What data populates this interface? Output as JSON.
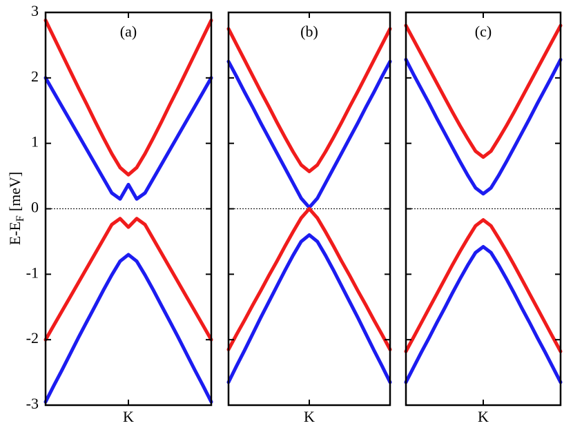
{
  "chart_data": [
    {
      "type": "line",
      "title": "(a)",
      "ylabel": {
        "main": "E-E",
        "sub": "F",
        "unit": "[meV]"
      },
      "x": [
        -1,
        -0.9,
        -0.8,
        -0.7,
        -0.6,
        -0.5,
        -0.4,
        -0.3,
        -0.2,
        -0.1,
        0,
        0.1,
        0.2,
        0.3,
        0.4,
        0.5,
        0.6,
        0.7,
        0.8,
        0.9,
        1
      ],
      "xlim": [
        -1,
        1
      ],
      "xticks": [
        {
          "value": 0,
          "label": "K"
        }
      ],
      "ylim": [
        -3,
        3
      ],
      "yticks": [
        -3,
        -2,
        -1,
        0,
        1,
        2,
        3
      ],
      "ytick_labels": true,
      "hline": 0,
      "series": [
        {
          "color": "#f01c1c",
          "values": [
            2.88,
            2.62,
            2.36,
            2.1,
            1.84,
            1.59,
            1.33,
            1.08,
            0.84,
            0.63,
            0.52,
            0.63,
            0.84,
            1.08,
            1.33,
            1.59,
            1.84,
            2.1,
            2.36,
            2.62,
            2.88
          ]
        },
        {
          "color": "#1c1cf0",
          "values": [
            2.0,
            1.78,
            1.56,
            1.34,
            1.12,
            0.9,
            0.68,
            0.46,
            0.24,
            0.15,
            0.37,
            0.15,
            0.24,
            0.46,
            0.68,
            0.9,
            1.12,
            1.34,
            1.56,
            1.78,
            2.0
          ]
        },
        {
          "color": "#f01c1c",
          "values": [
            -2.0,
            -1.78,
            -1.56,
            -1.34,
            -1.12,
            -0.9,
            -0.68,
            -0.46,
            -0.24,
            -0.15,
            -0.28,
            -0.15,
            -0.24,
            -0.46,
            -0.68,
            -0.9,
            -1.12,
            -1.34,
            -1.56,
            -1.78,
            -2.0
          ]
        },
        {
          "color": "#1c1cf0",
          "values": [
            -2.95,
            -2.7,
            -2.46,
            -2.21,
            -1.96,
            -1.72,
            -1.48,
            -1.24,
            -1.01,
            -0.8,
            -0.7,
            -0.8,
            -1.01,
            -1.24,
            -1.48,
            -1.72,
            -1.96,
            -2.21,
            -2.46,
            -2.7,
            -2.95
          ]
        }
      ]
    },
    {
      "type": "line",
      "title": "(b)",
      "x": [
        -1,
        -0.9,
        -0.8,
        -0.7,
        -0.6,
        -0.5,
        -0.4,
        -0.3,
        -0.2,
        -0.1,
        0,
        0.1,
        0.2,
        0.3,
        0.4,
        0.5,
        0.6,
        0.7,
        0.8,
        0.9,
        1
      ],
      "xlim": [
        -1,
        1
      ],
      "xticks": [
        {
          "value": 0,
          "label": "K"
        }
      ],
      "ylim": [
        -3,
        3
      ],
      "yticks": [
        -3,
        -2,
        -1,
        0,
        1,
        2,
        3
      ],
      "ytick_labels": false,
      "hline": 0,
      "series": [
        {
          "color": "#f01c1c",
          "values": [
            2.75,
            2.51,
            2.27,
            2.03,
            1.79,
            1.56,
            1.32,
            1.09,
            0.87,
            0.67,
            0.57,
            0.67,
            0.87,
            1.09,
            1.32,
            1.56,
            1.79,
            2.03,
            2.27,
            2.51,
            2.75
          ]
        },
        {
          "color": "#1c1cf0",
          "values": [
            2.25,
            2.02,
            1.78,
            1.55,
            1.31,
            1.08,
            0.85,
            0.62,
            0.39,
            0.16,
            0.02,
            0.16,
            0.39,
            0.62,
            0.85,
            1.08,
            1.31,
            1.55,
            1.78,
            2.02,
            2.25
          ]
        },
        {
          "color": "#f01c1c",
          "values": [
            -2.15,
            -1.92,
            -1.7,
            -1.47,
            -1.25,
            -1.02,
            -0.8,
            -0.57,
            -0.35,
            -0.14,
            0,
            -0.14,
            -0.35,
            -0.57,
            -0.8,
            -1.02,
            -1.25,
            -1.47,
            -1.7,
            -1.92,
            -2.15
          ]
        },
        {
          "color": "#1c1cf0",
          "values": [
            -2.65,
            -2.4,
            -2.16,
            -1.91,
            -1.66,
            -1.42,
            -1.18,
            -0.94,
            -0.71,
            -0.5,
            -0.4,
            -0.5,
            -0.71,
            -0.94,
            -1.18,
            -1.42,
            -1.66,
            -1.91,
            -2.16,
            -2.4,
            -2.65
          ]
        }
      ]
    },
    {
      "type": "line",
      "title": "(c)",
      "x": [
        -1,
        -0.9,
        -0.8,
        -0.7,
        -0.6,
        -0.5,
        -0.4,
        -0.3,
        -0.2,
        -0.1,
        0,
        0.1,
        0.2,
        0.3,
        0.4,
        0.5,
        0.6,
        0.7,
        0.8,
        0.9,
        1
      ],
      "xlim": [
        -1,
        1
      ],
      "xticks": [
        {
          "value": 0,
          "label": "K"
        }
      ],
      "ylim": [
        -3,
        3
      ],
      "yticks": [
        -3,
        -2,
        -1,
        0,
        1,
        2,
        3
      ],
      "ytick_labels": false,
      "hline": 0,
      "series": [
        {
          "color": "#f01c1c",
          "values": [
            2.8,
            2.58,
            2.36,
            2.14,
            1.92,
            1.7,
            1.48,
            1.27,
            1.07,
            0.88,
            0.79,
            0.88,
            1.07,
            1.27,
            1.48,
            1.7,
            1.92,
            2.14,
            2.36,
            2.58,
            2.8
          ]
        },
        {
          "color": "#1c1cf0",
          "values": [
            2.28,
            2.05,
            1.83,
            1.61,
            1.38,
            1.16,
            0.94,
            0.72,
            0.51,
            0.32,
            0.23,
            0.32,
            0.51,
            0.72,
            0.94,
            1.16,
            1.38,
            1.61,
            1.83,
            2.05,
            2.28
          ]
        },
        {
          "color": "#f01c1c",
          "values": [
            -2.18,
            -1.96,
            -1.74,
            -1.52,
            -1.3,
            -1.08,
            -0.86,
            -0.65,
            -0.45,
            -0.26,
            -0.17,
            -0.26,
            -0.45,
            -0.65,
            -0.86,
            -1.08,
            -1.3,
            -1.52,
            -1.74,
            -1.96,
            -2.18
          ]
        },
        {
          "color": "#1c1cf0",
          "values": [
            -2.65,
            -2.42,
            -2.19,
            -1.97,
            -1.74,
            -1.52,
            -1.29,
            -1.07,
            -0.86,
            -0.67,
            -0.58,
            -0.67,
            -0.86,
            -1.07,
            -1.29,
            -1.52,
            -1.74,
            -1.97,
            -2.19,
            -2.42,
            -2.65
          ]
        }
      ]
    }
  ]
}
